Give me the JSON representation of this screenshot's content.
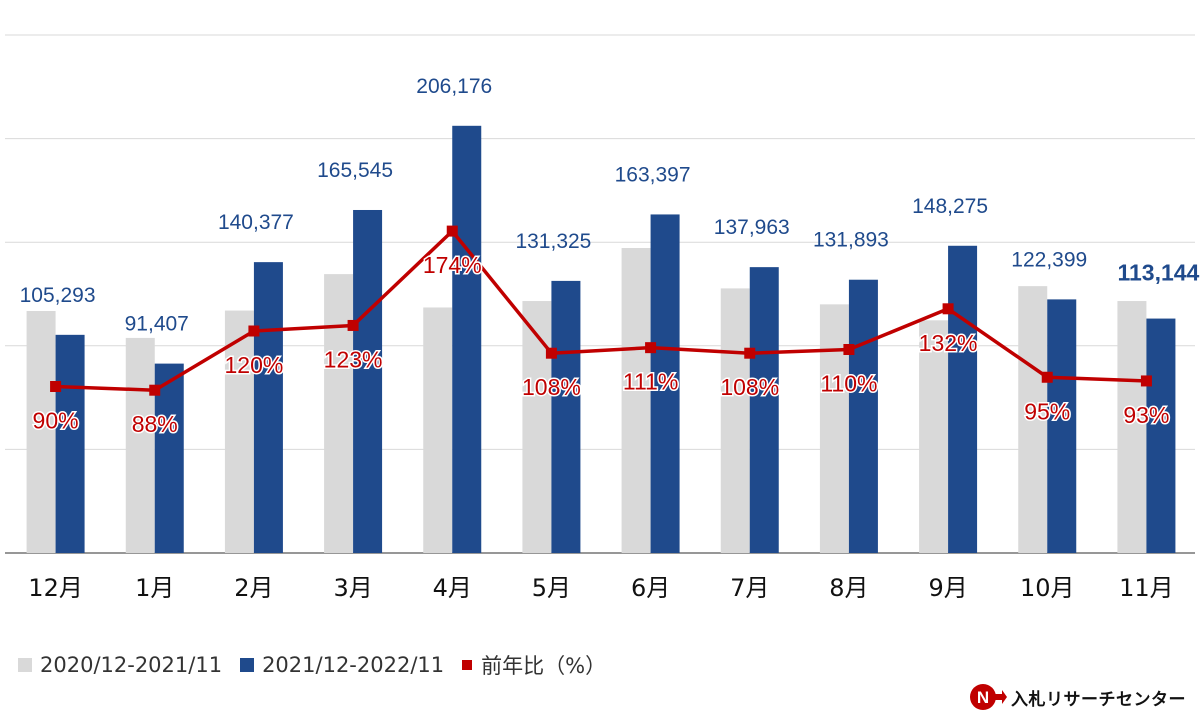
{
  "chart_data": {
    "type": "bar",
    "title": "",
    "xlabel": "",
    "ylabel": "",
    "ylim": [
      0,
      250000
    ],
    "grid": true,
    "categories": [
      "12月",
      "1月",
      "2月",
      "3月",
      "4月",
      "5月",
      "6月",
      "7月",
      "8月",
      "9月",
      "10月",
      "11月"
    ],
    "series": [
      {
        "name": "2020/12-2021/11",
        "type": "bar",
        "color": "#d9d9d9",
        "values": [
          116800,
          103800,
          117000,
          134600,
          118500,
          121600,
          147200,
          127700,
          120000,
          112300,
          128800,
          121600
        ]
      },
      {
        "name": "2021/12-2022/11",
        "type": "bar",
        "color": "#1f4a8c",
        "values": [
          105293,
          91407,
          140377,
          165545,
          206176,
          131325,
          163397,
          137963,
          131893,
          148275,
          122399,
          113144
        ],
        "labels": [
          "105,293",
          "91,407",
          "140,377",
          "165,545",
          "206,176",
          "131,325",
          "163,397",
          "137,963",
          "131,893",
          "148,275",
          "122,399",
          "113,144"
        ]
      },
      {
        "name": "前年比（%）",
        "type": "line",
        "color": "#c00000",
        "axis": "secondary",
        "ylim": [
          0,
          280
        ],
        "values": [
          90,
          88,
          120,
          123,
          174,
          108,
          111,
          108,
          110,
          132,
          95,
          93
        ],
        "labels": [
          "90%",
          "88%",
          "120%",
          "123%",
          "174%",
          "108%",
          "111%",
          "108%",
          "110%",
          "132%",
          "95%",
          "93%"
        ]
      }
    ]
  },
  "legend": [
    {
      "label": "2020/12-2021/11",
      "color": "#d9d9d9"
    },
    {
      "label": "2021/12-2022/11",
      "color": "#1f4a8c"
    },
    {
      "label": "前年比（%）",
      "color": "#c00000"
    }
  ],
  "brand": {
    "name": "入札リサーチセンター",
    "logo_letter": "N"
  }
}
